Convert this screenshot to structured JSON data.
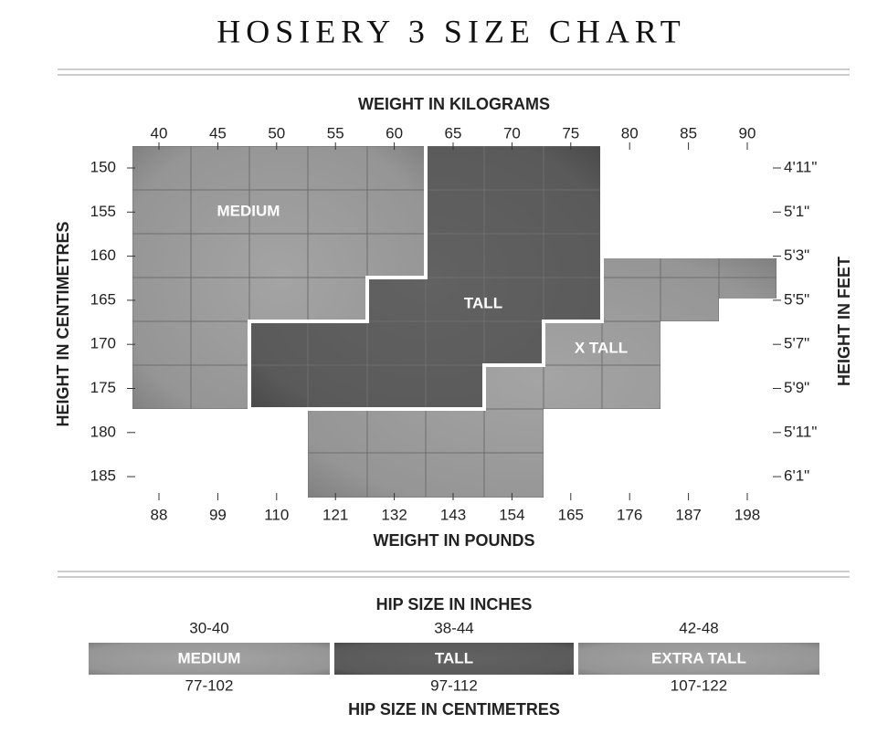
{
  "title": "HOSIERY 3 SIZE CHART",
  "size_chart": {
    "x_top_title": "WEIGHT IN KILOGRAMS",
    "x_top_ticks": [
      "40",
      "45",
      "50",
      "55",
      "60",
      "65",
      "70",
      "75",
      "80",
      "85",
      "90"
    ],
    "x_bottom_title": "WEIGHT IN POUNDS",
    "x_bottom_ticks": [
      "88",
      "99",
      "110",
      "121",
      "132",
      "143",
      "154",
      "165",
      "176",
      "187",
      "198"
    ],
    "y_left_title": "HEIGHT IN CENTIMETRES",
    "y_left_ticks": [
      "150",
      "155",
      "160",
      "165",
      "170",
      "175",
      "180",
      "185"
    ],
    "y_right_title": "HEIGHT IN FEET",
    "y_right_ticks": [
      "4'11\"",
      "5'1\"",
      "5'3\"",
      "5'5\"",
      "5'7\"",
      "5'9\"",
      "5'11\"",
      "6'1\""
    ],
    "regions": [
      "MEDIUM",
      "TALL",
      "X TALL"
    ]
  },
  "hip_chart": {
    "top_title": "HIP SIZE IN INCHES",
    "bottom_title": "HIP SIZE IN CENTIMETRES",
    "sizes": [
      {
        "name": "MEDIUM",
        "inches": "30-40",
        "cm": "77-102"
      },
      {
        "name": "TALL",
        "inches": "38-44",
        "cm": "97-112"
      },
      {
        "name": "EXTRA TALL",
        "inches": "42-48",
        "cm": "107-122"
      }
    ]
  }
}
